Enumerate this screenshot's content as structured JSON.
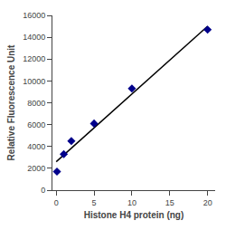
{
  "chart_data": {
    "type": "scatter",
    "xlabel": "Histone H4 protein (ng)",
    "ylabel": "Relative Fluorescence Unit",
    "series": [
      {
        "type": "line",
        "color": "#000000",
        "line_style": "solid",
        "x": [
          0,
          20
        ],
        "values": [
          2600,
          15000
        ]
      },
      {
        "type": "scatter",
        "color": "#00008B",
        "marker": "diamond",
        "x": [
          0.1,
          1,
          2,
          5,
          10,
          20
        ],
        "values": [
          1700,
          3300,
          4500,
          6100,
          9300,
          14700
        ]
      }
    ],
    "xlim": [
      -0.5,
      21
    ],
    "ylim": [
      0,
      16000
    ],
    "xticks": [
      0,
      5,
      10,
      15,
      20
    ],
    "yticks": [
      0,
      2000,
      4000,
      6000,
      8000,
      10000,
      12000,
      14000,
      16000
    ],
    "grid": false
  }
}
